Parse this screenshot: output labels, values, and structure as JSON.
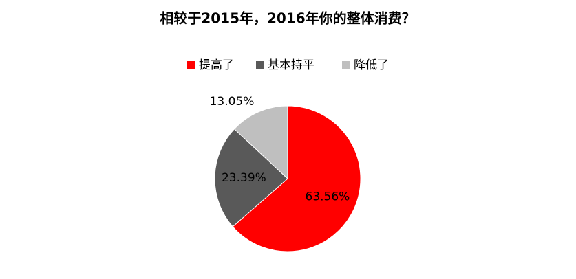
{
  "chart_data": {
    "type": "pie",
    "title": "相较于2015年，2016年你的整体消费？",
    "categories": [
      "提高了",
      "基本持平",
      "降低了"
    ],
    "values": [
      63.56,
      23.39,
      13.05
    ],
    "value_labels": [
      "63.56%",
      "23.39%",
      "13.05%"
    ],
    "colors": [
      "#ff0000",
      "#595959",
      "#bfbfbf"
    ],
    "legend": "top"
  }
}
